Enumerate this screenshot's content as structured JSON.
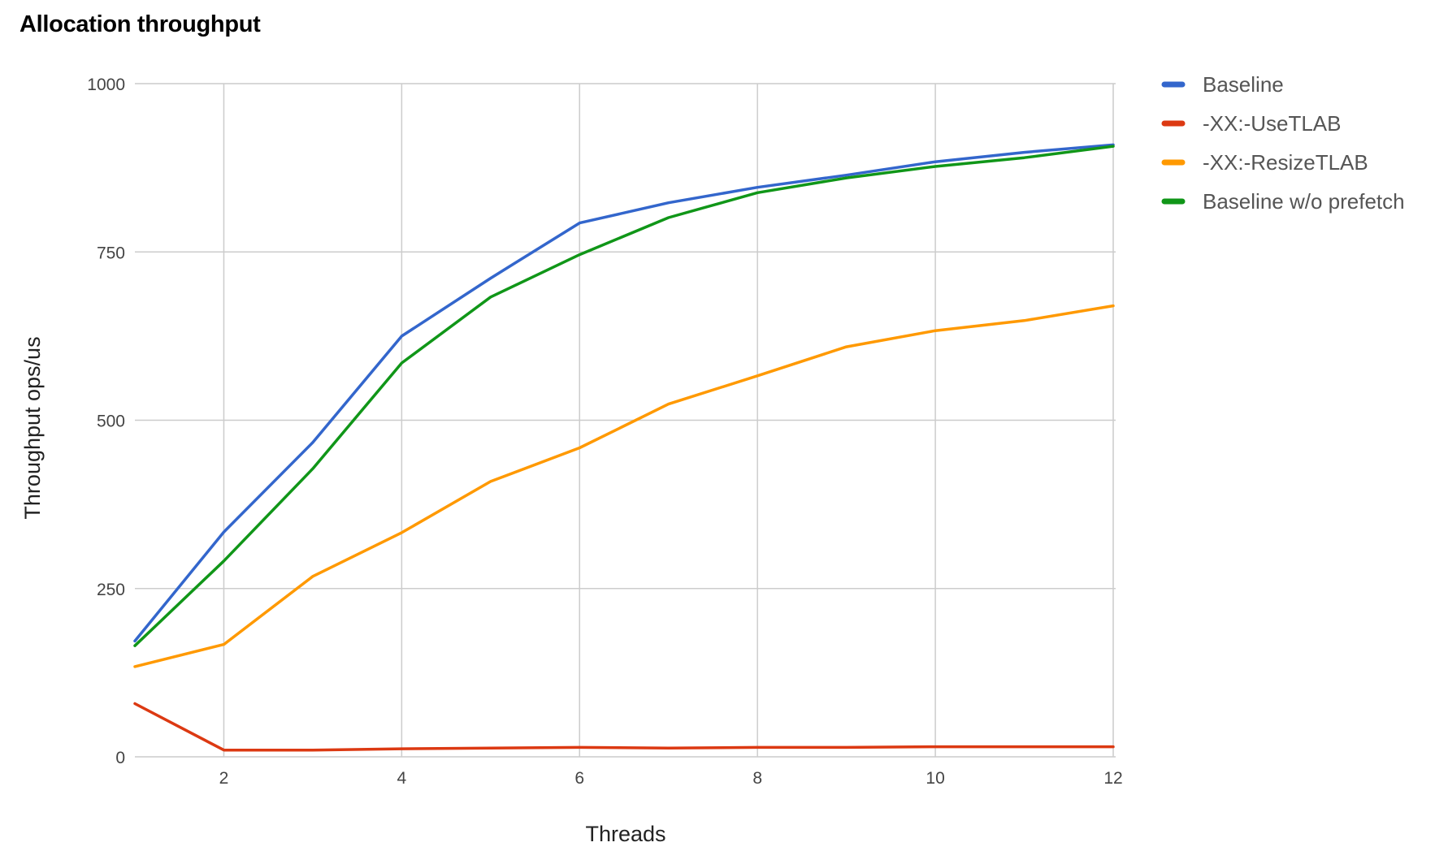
{
  "chart_data": {
    "type": "line",
    "title": "Allocation throughput",
    "xlabel": "Threads",
    "ylabel": "Throughput ops/us",
    "xlim": [
      1,
      12
    ],
    "ylim": [
      0,
      1000
    ],
    "x": [
      1,
      2,
      3,
      4,
      5,
      6,
      7,
      8,
      9,
      10,
      11,
      12
    ],
    "x_ticks": [
      2,
      4,
      6,
      8,
      10,
      12
    ],
    "y_ticks": [
      0,
      250,
      500,
      750,
      1000
    ],
    "grid": true,
    "legend_position": "right",
    "series": [
      {
        "name": "Baseline",
        "color": "#3366cc",
        "values": [
          172,
          334,
          467,
          625,
          711,
          793,
          823,
          846,
          864,
          884,
          898,
          909
        ]
      },
      {
        "name": "-XX:-UseTLAB",
        "color": "#dc3912",
        "values": [
          79,
          10,
          10,
          12,
          13,
          14,
          13,
          14,
          14,
          15,
          15,
          15
        ]
      },
      {
        "name": "-XX:-ResizeTLAB",
        "color": "#ff9900",
        "values": [
          134,
          167,
          268,
          333,
          409,
          459,
          524,
          566,
          609,
          633,
          648,
          670
        ]
      },
      {
        "name": "Baseline w/o prefetch",
        "color": "#109618",
        "values": [
          165,
          291,
          428,
          585,
          683,
          746,
          801,
          838,
          860,
          877,
          890,
          907
        ]
      }
    ]
  }
}
